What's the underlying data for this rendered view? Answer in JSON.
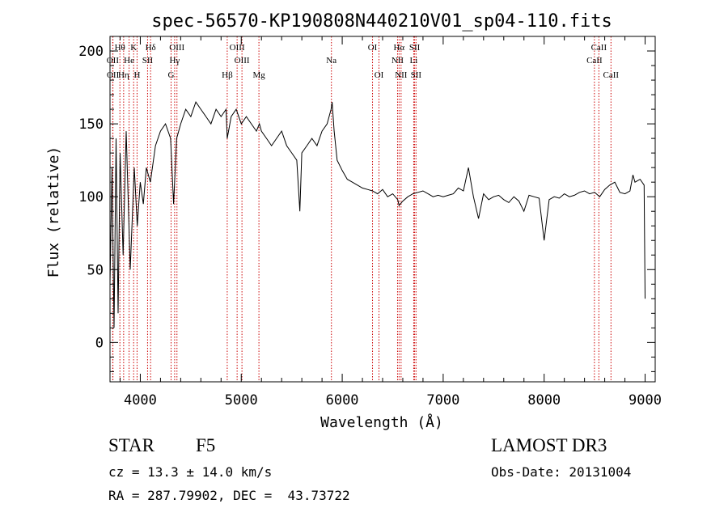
{
  "chart_data": {
    "type": "line",
    "title": "spec-56570-KP190808N440210V01_sp04-110.fits",
    "xlabel": "Wavelength (Å)",
    "ylabel": "Flux (relative)",
    "xlim": [
      3700,
      9100
    ],
    "ylim": [
      -27,
      210
    ],
    "xticks": [
      4000,
      5000,
      6000,
      7000,
      8000,
      9000
    ],
    "yticks": [
      0,
      50,
      100,
      150,
      200
    ],
    "grid": false,
    "colors": {
      "spectrum": "#000000",
      "lines": "#cc0000",
      "axes": "#000000"
    },
    "series": [
      {
        "name": "spectrum",
        "x": [
          3700,
          3720,
          3740,
          3760,
          3780,
          3800,
          3830,
          3860,
          3900,
          3940,
          3970,
          4000,
          4030,
          4060,
          4100,
          4150,
          4200,
          4250,
          4300,
          4330,
          4360,
          4400,
          4450,
          4500,
          4550,
          4600,
          4650,
          4700,
          4750,
          4800,
          4850,
          4861,
          4900,
          4950,
          5000,
          5050,
          5100,
          5150,
          5180,
          5200,
          5250,
          5300,
          5350,
          5400,
          5450,
          5500,
          5550,
          5580,
          5600,
          5650,
          5700,
          5750,
          5800,
          5850,
          5890,
          5900,
          5920,
          5950,
          6000,
          6050,
          6100,
          6150,
          6200,
          6250,
          6300,
          6350,
          6400,
          6450,
          6500,
          6550,
          6563,
          6600,
          6650,
          6700,
          6750,
          6800,
          6850,
          6900,
          6950,
          7000,
          7050,
          7100,
          7150,
          7200,
          7250,
          7300,
          7350,
          7400,
          7450,
          7500,
          7550,
          7600,
          7650,
          7700,
          7750,
          7800,
          7850,
          7900,
          7950,
          8000,
          8050,
          8100,
          8150,
          8200,
          8250,
          8300,
          8350,
          8400,
          8450,
          8500,
          8550,
          8600,
          8650,
          8700,
          8750,
          8800,
          8850,
          8880,
          8900,
          8950,
          8990,
          9000
        ],
        "values": [
          40,
          120,
          10,
          140,
          20,
          130,
          60,
          145,
          50,
          120,
          80,
          110,
          95,
          120,
          110,
          135,
          145,
          150,
          140,
          95,
          140,
          150,
          160,
          155,
          165,
          160,
          155,
          150,
          160,
          155,
          160,
          140,
          155,
          160,
          150,
          155,
          150,
          145,
          150,
          145,
          140,
          135,
          140,
          145,
          135,
          130,
          125,
          90,
          130,
          135,
          140,
          135,
          145,
          150,
          160,
          165,
          145,
          125,
          118,
          112,
          110,
          108,
          106,
          105,
          104,
          102,
          105,
          100,
          102,
          98,
          94,
          97,
          100,
          102,
          103,
          104,
          102,
          100,
          101,
          100,
          101,
          102,
          106,
          104,
          120,
          100,
          85,
          102,
          98,
          100,
          101,
          98,
          96,
          100,
          97,
          90,
          101,
          100,
          99,
          70,
          98,
          100,
          99,
          102,
          100,
          101,
          103,
          104,
          102,
          103,
          100,
          105,
          108,
          110,
          103,
          102,
          104,
          115,
          110,
          112,
          108,
          30
        ]
      }
    ],
    "line_groups": [
      {
        "row": 1,
        "items": [
          {
            "label": "Hθ",
            "wavelength": 3798
          },
          {
            "label": "K",
            "wavelength": 3934
          },
          {
            "label": "Hδ",
            "wavelength": 4102
          },
          {
            "label": "OIII",
            "wavelength": 4363
          },
          {
            "label": "OIII",
            "wavelength": 4959
          },
          {
            "label": "OI",
            "wavelength": 6300
          },
          {
            "label": "Hα",
            "wavelength": 6563
          },
          {
            "label": "SII",
            "wavelength": 6717
          },
          {
            "label": "CaII",
            "wavelength": 8542
          }
        ]
      },
      {
        "row": 2,
        "items": [
          {
            "label": "OII",
            "wavelength": 3727
          },
          {
            "label": "He",
            "wavelength": 3889
          },
          {
            "label": "SII",
            "wavelength": 4072
          },
          {
            "label": "Hγ",
            "wavelength": 4340
          },
          {
            "label": "OIII",
            "wavelength": 5007
          },
          {
            "label": "Na",
            "wavelength": 5893
          },
          {
            "label": "NII",
            "wavelength": 6548
          },
          {
            "label": "Li",
            "wavelength": 6708
          },
          {
            "label": "CaII",
            "wavelength": 8498
          }
        ]
      },
      {
        "row": 3,
        "items": [
          {
            "label": "OII",
            "wavelength": 3729
          },
          {
            "label": "Hη",
            "wavelength": 3835
          },
          {
            "label": "H",
            "wavelength": 3968
          },
          {
            "label": "G",
            "wavelength": 4305
          },
          {
            "label": "Hβ",
            "wavelength": 4861
          },
          {
            "label": "Mg",
            "wavelength": 5175
          },
          {
            "label": "OI",
            "wavelength": 6364
          },
          {
            "label": "NII",
            "wavelength": 6583
          },
          {
            "label": "SII",
            "wavelength": 6731
          },
          {
            "label": "CaII",
            "wavelength": 8662
          }
        ]
      }
    ]
  },
  "info": {
    "classification": "STAR",
    "subclass": "F5",
    "redshift": "cz = 13.3 ± 14.0 km/s",
    "coords": "RA = 287.79902, DEC =  43.73722",
    "survey": "LAMOST DR3",
    "obs_date": "Obs-Date: 20131004"
  }
}
